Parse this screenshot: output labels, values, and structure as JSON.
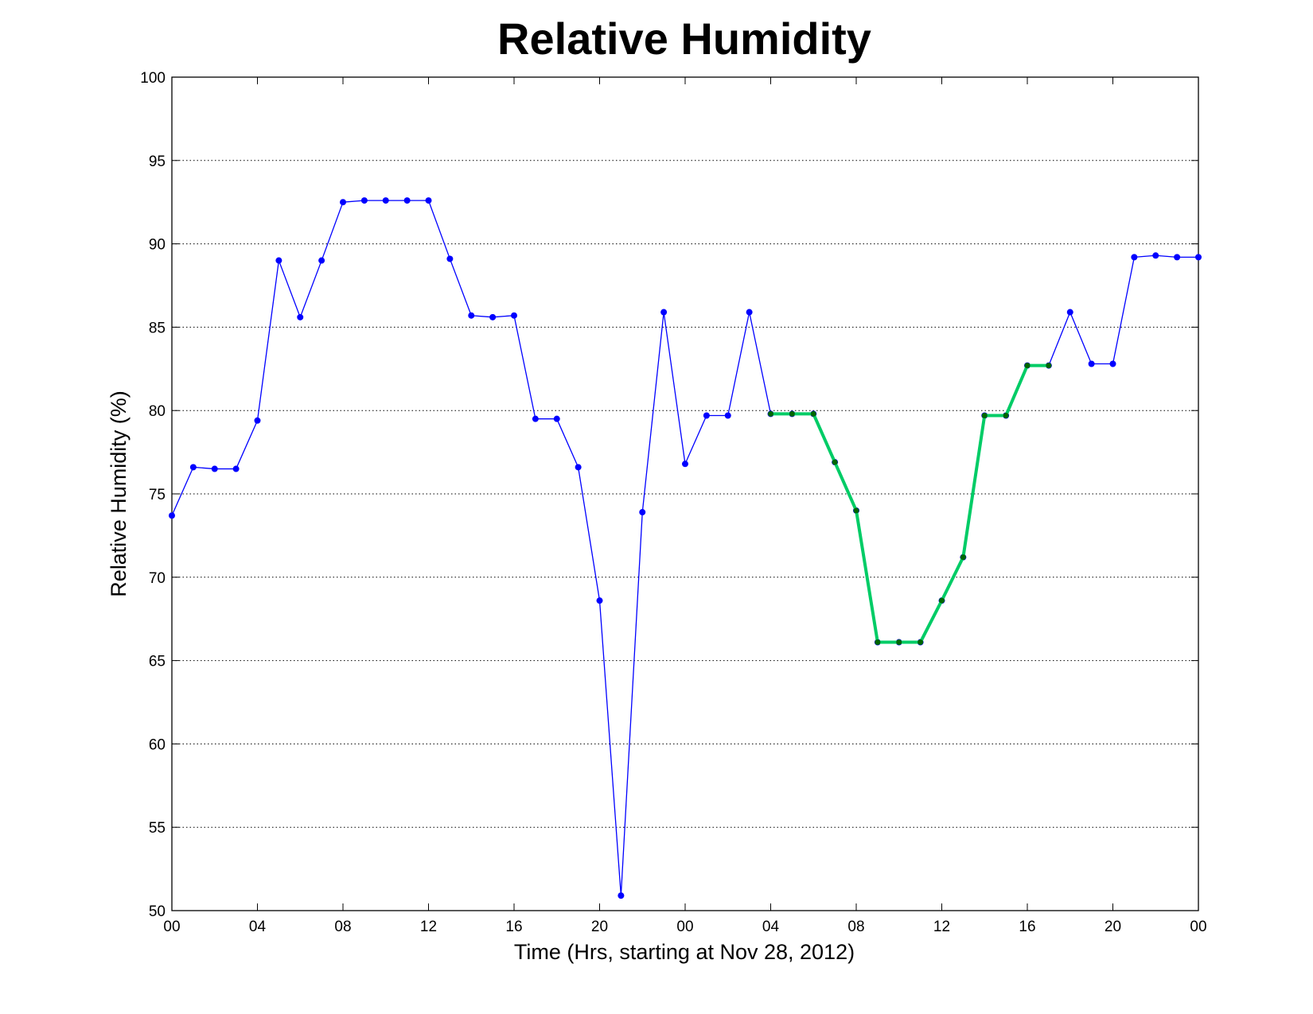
{
  "chart_data": {
    "type": "line",
    "title": "Relative Humidity",
    "xlabel": "Time (Hrs, starting at Nov 28, 2012)",
    "ylabel": "Relative Humidity (%)",
    "xlim": [
      0,
      48
    ],
    "ylim": [
      50,
      100
    ],
    "x_ticks": [
      0,
      4,
      8,
      12,
      16,
      20,
      24,
      28,
      32,
      36,
      40,
      44,
      48
    ],
    "x_tick_labels": [
      "00",
      "04",
      "08",
      "12",
      "16",
      "20",
      "00",
      "04",
      "08",
      "12",
      "16",
      "20",
      "00"
    ],
    "y_ticks": [
      50,
      55,
      60,
      65,
      70,
      75,
      80,
      85,
      90,
      95,
      100
    ],
    "y_tick_labels": [
      "50",
      "55",
      "60",
      "65",
      "70",
      "75",
      "80",
      "85",
      "90",
      "95",
      "100"
    ],
    "grid": "horizontal-dotted",
    "series": [
      {
        "color": "#0000ff",
        "x": [
          0,
          1,
          2,
          3,
          4,
          5,
          6,
          7,
          8,
          9,
          10,
          11,
          12,
          13,
          14,
          15,
          16,
          17,
          18,
          19,
          20,
          21,
          22,
          23,
          24,
          25,
          26,
          27,
          28,
          29,
          30,
          31,
          32,
          33,
          34,
          35,
          36,
          37,
          38,
          39,
          40,
          41,
          42,
          43,
          44,
          45,
          46,
          47,
          48
        ],
        "values": [
          73.7,
          76.6,
          76.5,
          76.5,
          79.4,
          89.0,
          85.6,
          89.0,
          92.5,
          92.6,
          92.6,
          92.6,
          92.6,
          89.1,
          85.7,
          85.6,
          85.7,
          79.5,
          79.5,
          76.6,
          68.6,
          50.9,
          73.9,
          85.9,
          76.8,
          79.7,
          79.7,
          85.9,
          79.8,
          79.8,
          79.8,
          76.9,
          74.0,
          66.1,
          66.1,
          66.1,
          68.6,
          71.2,
          79.7,
          79.7,
          82.7,
          82.7,
          85.9,
          82.8,
          82.8,
          89.2,
          89.3,
          89.2,
          89.2
        ]
      },
      {
        "color": "#00cc66",
        "marker_color": "#006600",
        "x": [
          28,
          29,
          30,
          31,
          32,
          33,
          34,
          35,
          36,
          37,
          38,
          39,
          40,
          41
        ],
        "values": [
          79.8,
          79.8,
          79.8,
          76.9,
          74.0,
          66.1,
          66.1,
          66.1,
          68.6,
          71.2,
          79.7,
          79.7,
          82.7,
          82.7
        ]
      }
    ]
  }
}
